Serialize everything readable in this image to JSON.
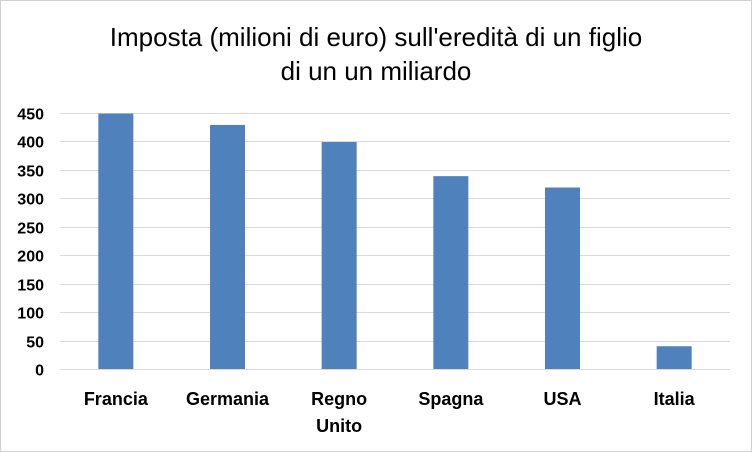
{
  "chart_data": {
    "type": "bar",
    "title_lines": [
      "Imposta (milioni di euro) sull'eredità di un figlio",
      "di un un miliardo"
    ],
    "categories": [
      "Francia",
      "Germania",
      "Regno Unito",
      "Spagna",
      "USA",
      "Italia"
    ],
    "category_label_lines": [
      [
        "Francia"
      ],
      [
        "Germania"
      ],
      [
        "Regno",
        "Unito"
      ],
      [
        "Spagna"
      ],
      [
        "USA"
      ],
      [
        "Italia"
      ]
    ],
    "values": [
      449,
      429,
      399,
      339,
      319,
      40
    ],
    "ylim": [
      0,
      450
    ],
    "yticks": [
      0,
      50,
      100,
      150,
      200,
      250,
      300,
      350,
      400,
      450
    ],
    "xlabel": "",
    "ylabel": "",
    "grid": true,
    "bar_color": "#4f81bd",
    "grid_color": "#d9d9d9"
  }
}
